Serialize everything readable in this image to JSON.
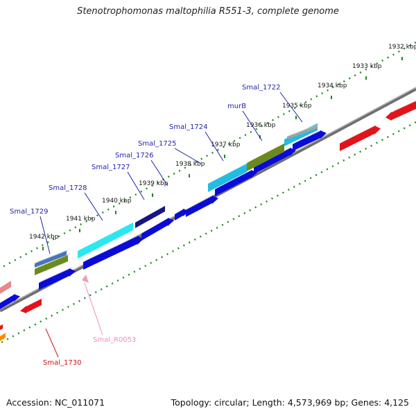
{
  "title": "Stenotrophomonas maltophilia R551-3, complete genome",
  "footer": {
    "accession": "Accession: NC_011071",
    "summary": "Topology: circular; Length: 4,573,969 bp; Genes: 4,125"
  },
  "colors": {
    "tick_marks": "#1a8a1a",
    "backbone": "#8c8c8c",
    "forward_gene": "#0b0bd6",
    "reverse_gene": "#e0141a",
    "rna_gene": "#f09ac0",
    "label_blue": "#1f1fb0",
    "label_red": "#cc1111",
    "label_pink": "#f08cbf"
  },
  "ticks": [
    {
      "label": "1932 kbp"
    },
    {
      "label": "1933 kbp"
    },
    {
      "label": "1934 kbp"
    },
    {
      "label": "1935 kbp"
    },
    {
      "label": "1936 kbp"
    },
    {
      "label": "1937 kbp"
    },
    {
      "label": "1938 kbp"
    },
    {
      "label": "1939 kbp"
    },
    {
      "label": "1940 kbp"
    },
    {
      "label": "1941 kbp"
    },
    {
      "label": "1942 kbp"
    }
  ],
  "genes": [
    {
      "label": "Smal_1722",
      "label_color": "#1f1fb0"
    },
    {
      "label": "murB",
      "label_color": "#1f1fb0"
    },
    {
      "label": "Smal_1724",
      "label_color": "#1f1fb0"
    },
    {
      "label": "Smal_1725",
      "label_color": "#1f1fb0"
    },
    {
      "label": "Smal_1726",
      "label_color": "#1f1fb0"
    },
    {
      "label": "Smal_1727",
      "label_color": "#1f1fb0"
    },
    {
      "label": "Smal_1728",
      "label_color": "#1f1fb0"
    },
    {
      "label": "Smal_1729",
      "label_color": "#1f1fb0"
    },
    {
      "label": "Smal_R0053",
      "label_color": "#f08cbf"
    },
    {
      "label": "Smal_1730",
      "label_color": "#cc1111"
    }
  ]
}
